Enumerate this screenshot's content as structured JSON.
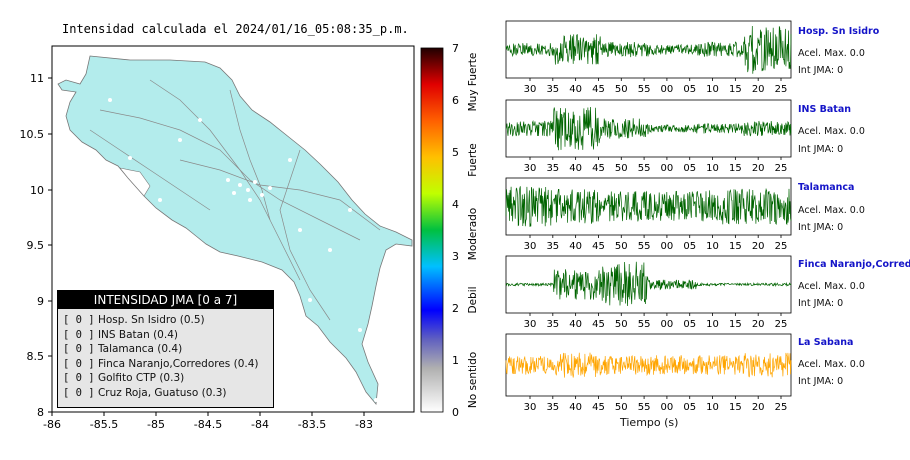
{
  "map": {
    "title": "Intensidad calculada el 2024/01/16_05:08:35_p.m.",
    "x_ticks": [
      "-86",
      "-85.5",
      "-85",
      "-84.5",
      "-84",
      "-83.5",
      "-83"
    ],
    "y_ticks": [
      "11",
      "10.5",
      "10",
      "9.5",
      "9",
      "8.5",
      "8"
    ],
    "land_color": "#b0eaea"
  },
  "colorbar": {
    "ticks": [
      "7",
      "6",
      "5",
      "4",
      "3",
      "2",
      "1",
      "0"
    ],
    "labels": [
      "Muy Fuerte",
      "Fuerte",
      "Moderado",
      "Debil",
      "No sentido"
    ]
  },
  "legend": {
    "header": "INTENSIDAD JMA [0 a 7]",
    "items": [
      {
        "level": "[ 0 ]",
        "text": "Hosp. Sn Isidro (0.5)"
      },
      {
        "level": "[ 0 ]",
        "text": "INS Batan (0.4)"
      },
      {
        "level": "[ 0 ]",
        "text": "Talamanca (0.4)"
      },
      {
        "level": "[ 0 ]",
        "text": "Finca Naranjo,Corredores (0.4)"
      },
      {
        "level": "[ 0 ]",
        "text": "Golfito CTP (0.3)"
      },
      {
        "level": "[ 0 ]",
        "text": "Cruz Roja, Guatuso (0.3)"
      }
    ]
  },
  "stations": [
    {
      "name": "Hosp. Sn Isidro",
      "accel": "Acel. Max. 0.0",
      "jma": "Int JMA: 0",
      "color": "#006400",
      "ticks": [
        "30",
        "35",
        "40",
        "45",
        "50",
        "55",
        "00",
        "05",
        "10",
        "15",
        "20",
        "25"
      ]
    },
    {
      "name": "INS Batan",
      "accel": "Acel. Max. 0.0",
      "jma": "Int JMA: 0",
      "color": "#006400",
      "ticks": [
        "30",
        "35",
        "40",
        "45",
        "50",
        "55",
        "00",
        "05",
        "10",
        "15",
        "20",
        "25"
      ]
    },
    {
      "name": "Talamanca",
      "accel": "Acel. Max. 0.0",
      "jma": "Int JMA: 0",
      "color": "#006400",
      "ticks": [
        "30",
        "35",
        "40",
        "45",
        "50",
        "55",
        "00",
        "05",
        "10",
        "15",
        "20",
        "25"
      ]
    },
    {
      "name": "Finca Naranjo,Corredor",
      "accel": "Acel. Max. 0.0",
      "jma": "Int JMA: 0",
      "color": "#006400",
      "ticks": [
        "30",
        "35",
        "40",
        "45",
        "50",
        "55",
        "00",
        "05",
        "10",
        "15",
        "20",
        "25"
      ]
    },
    {
      "name": "La Sabana",
      "accel": "Acel. Max. 0.0",
      "jma": "Int JMA: 0",
      "color": "#ffa500",
      "ticks": [
        "30",
        "35",
        "40",
        "45",
        "50",
        "55",
        "00",
        "05",
        "10",
        "15",
        "20",
        "25"
      ]
    }
  ],
  "time_axis_label": "Tiempo (s)"
}
